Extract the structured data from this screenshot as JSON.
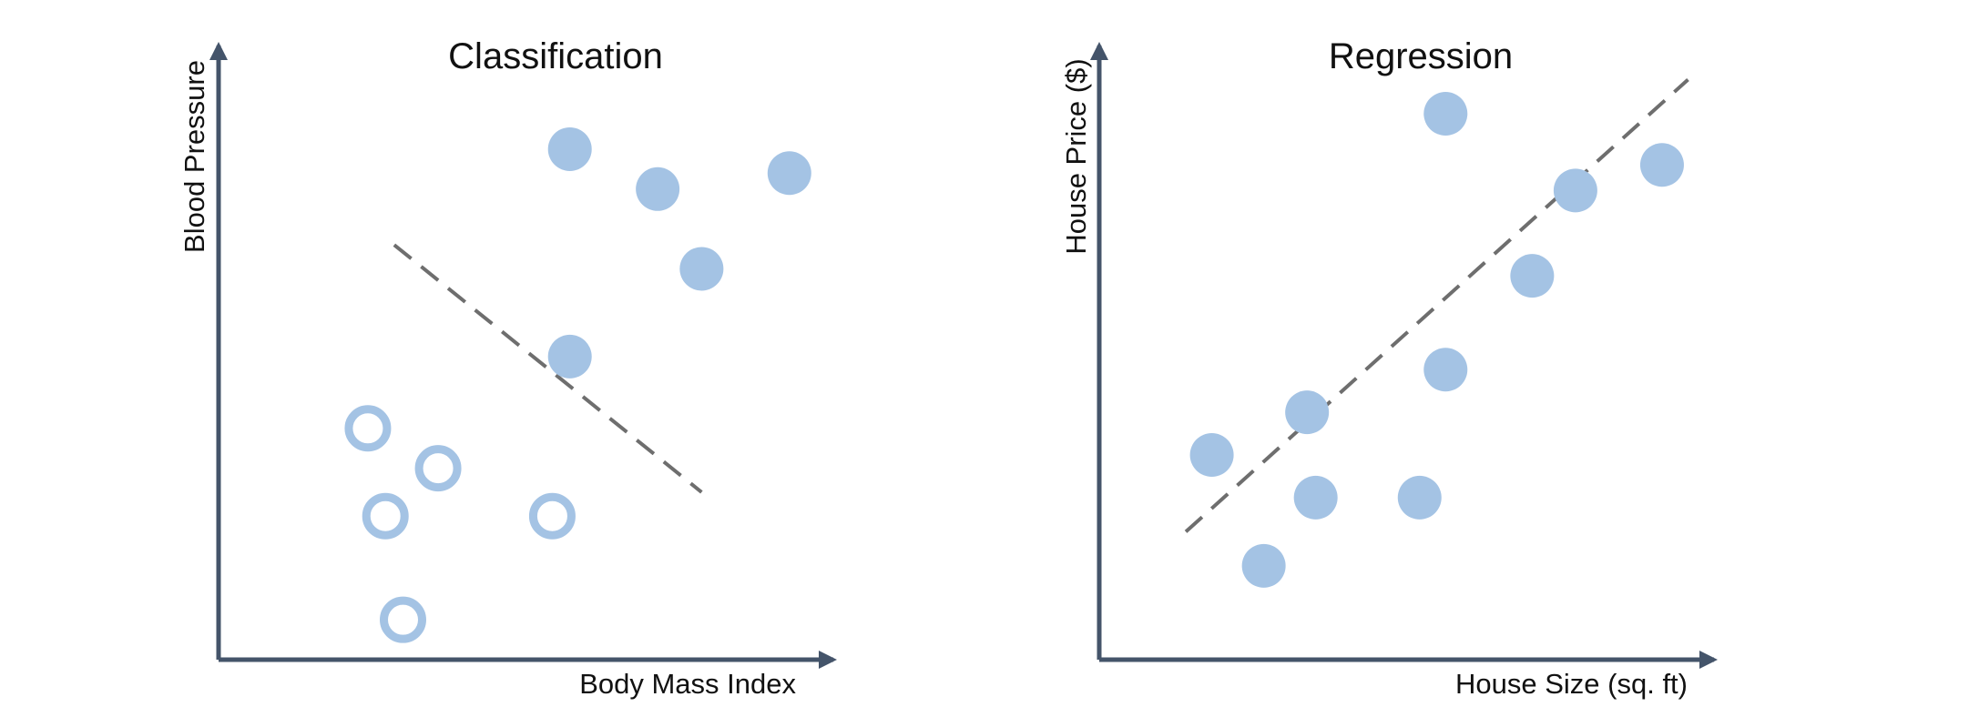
{
  "colors": {
    "axis": "#44546a",
    "point": "#a4c3e4",
    "divider": "#6e6e6e",
    "text": "#111111",
    "background": "#ffffff"
  },
  "chart_data": [
    {
      "type": "scatter",
      "title": "Classification",
      "xlabel": "Body Mass Index",
      "ylabel": "Blood Pressure",
      "series": [
        {
          "name": "",
          "marker": "filled",
          "x": [
            3.5,
            4.5,
            5.0,
            6.0,
            3.5
          ],
          "y": [
            5.7,
            5.2,
            4.2,
            5.4,
            3.1
          ]
        },
        {
          "name": "",
          "marker": "hollow",
          "x": [
            1.2,
            2.0,
            1.4,
            3.3,
            1.6
          ],
          "y": [
            2.2,
            1.7,
            1.1,
            1.1,
            -0.2
          ]
        }
      ],
      "divider": {
        "style": "dashed",
        "x": [
          1.5,
          5.0
        ],
        "y": [
          4.5,
          1.4
        ]
      },
      "xlim": [
        -0.5,
        6.5
      ],
      "ylim": [
        -0.7,
        7.0
      ]
    },
    {
      "type": "scatter",
      "title": "Regression",
      "xlabel": "House Size (sq. ft)",
      "ylabel": "House Price ($)",
      "series": [
        {
          "name": "",
          "marker": "filled",
          "x": [
            1.0,
            1.6,
            2.2,
            2.1,
            3.4,
            3.7,
            4.7,
            5.2,
            6.2,
            3.7
          ],
          "y": [
            1.6,
            0.3,
            1.1,
            2.1,
            1.1,
            2.6,
            3.7,
            4.7,
            5.0,
            5.6
          ]
        }
      ],
      "trendline": {
        "style": "dashed",
        "x": [
          0.7,
          6.5
        ],
        "y": [
          0.7,
          6.0
        ]
      },
      "xlim": [
        -0.3,
        6.8
      ],
      "ylim": [
        -0.8,
        6.4
      ]
    }
  ]
}
